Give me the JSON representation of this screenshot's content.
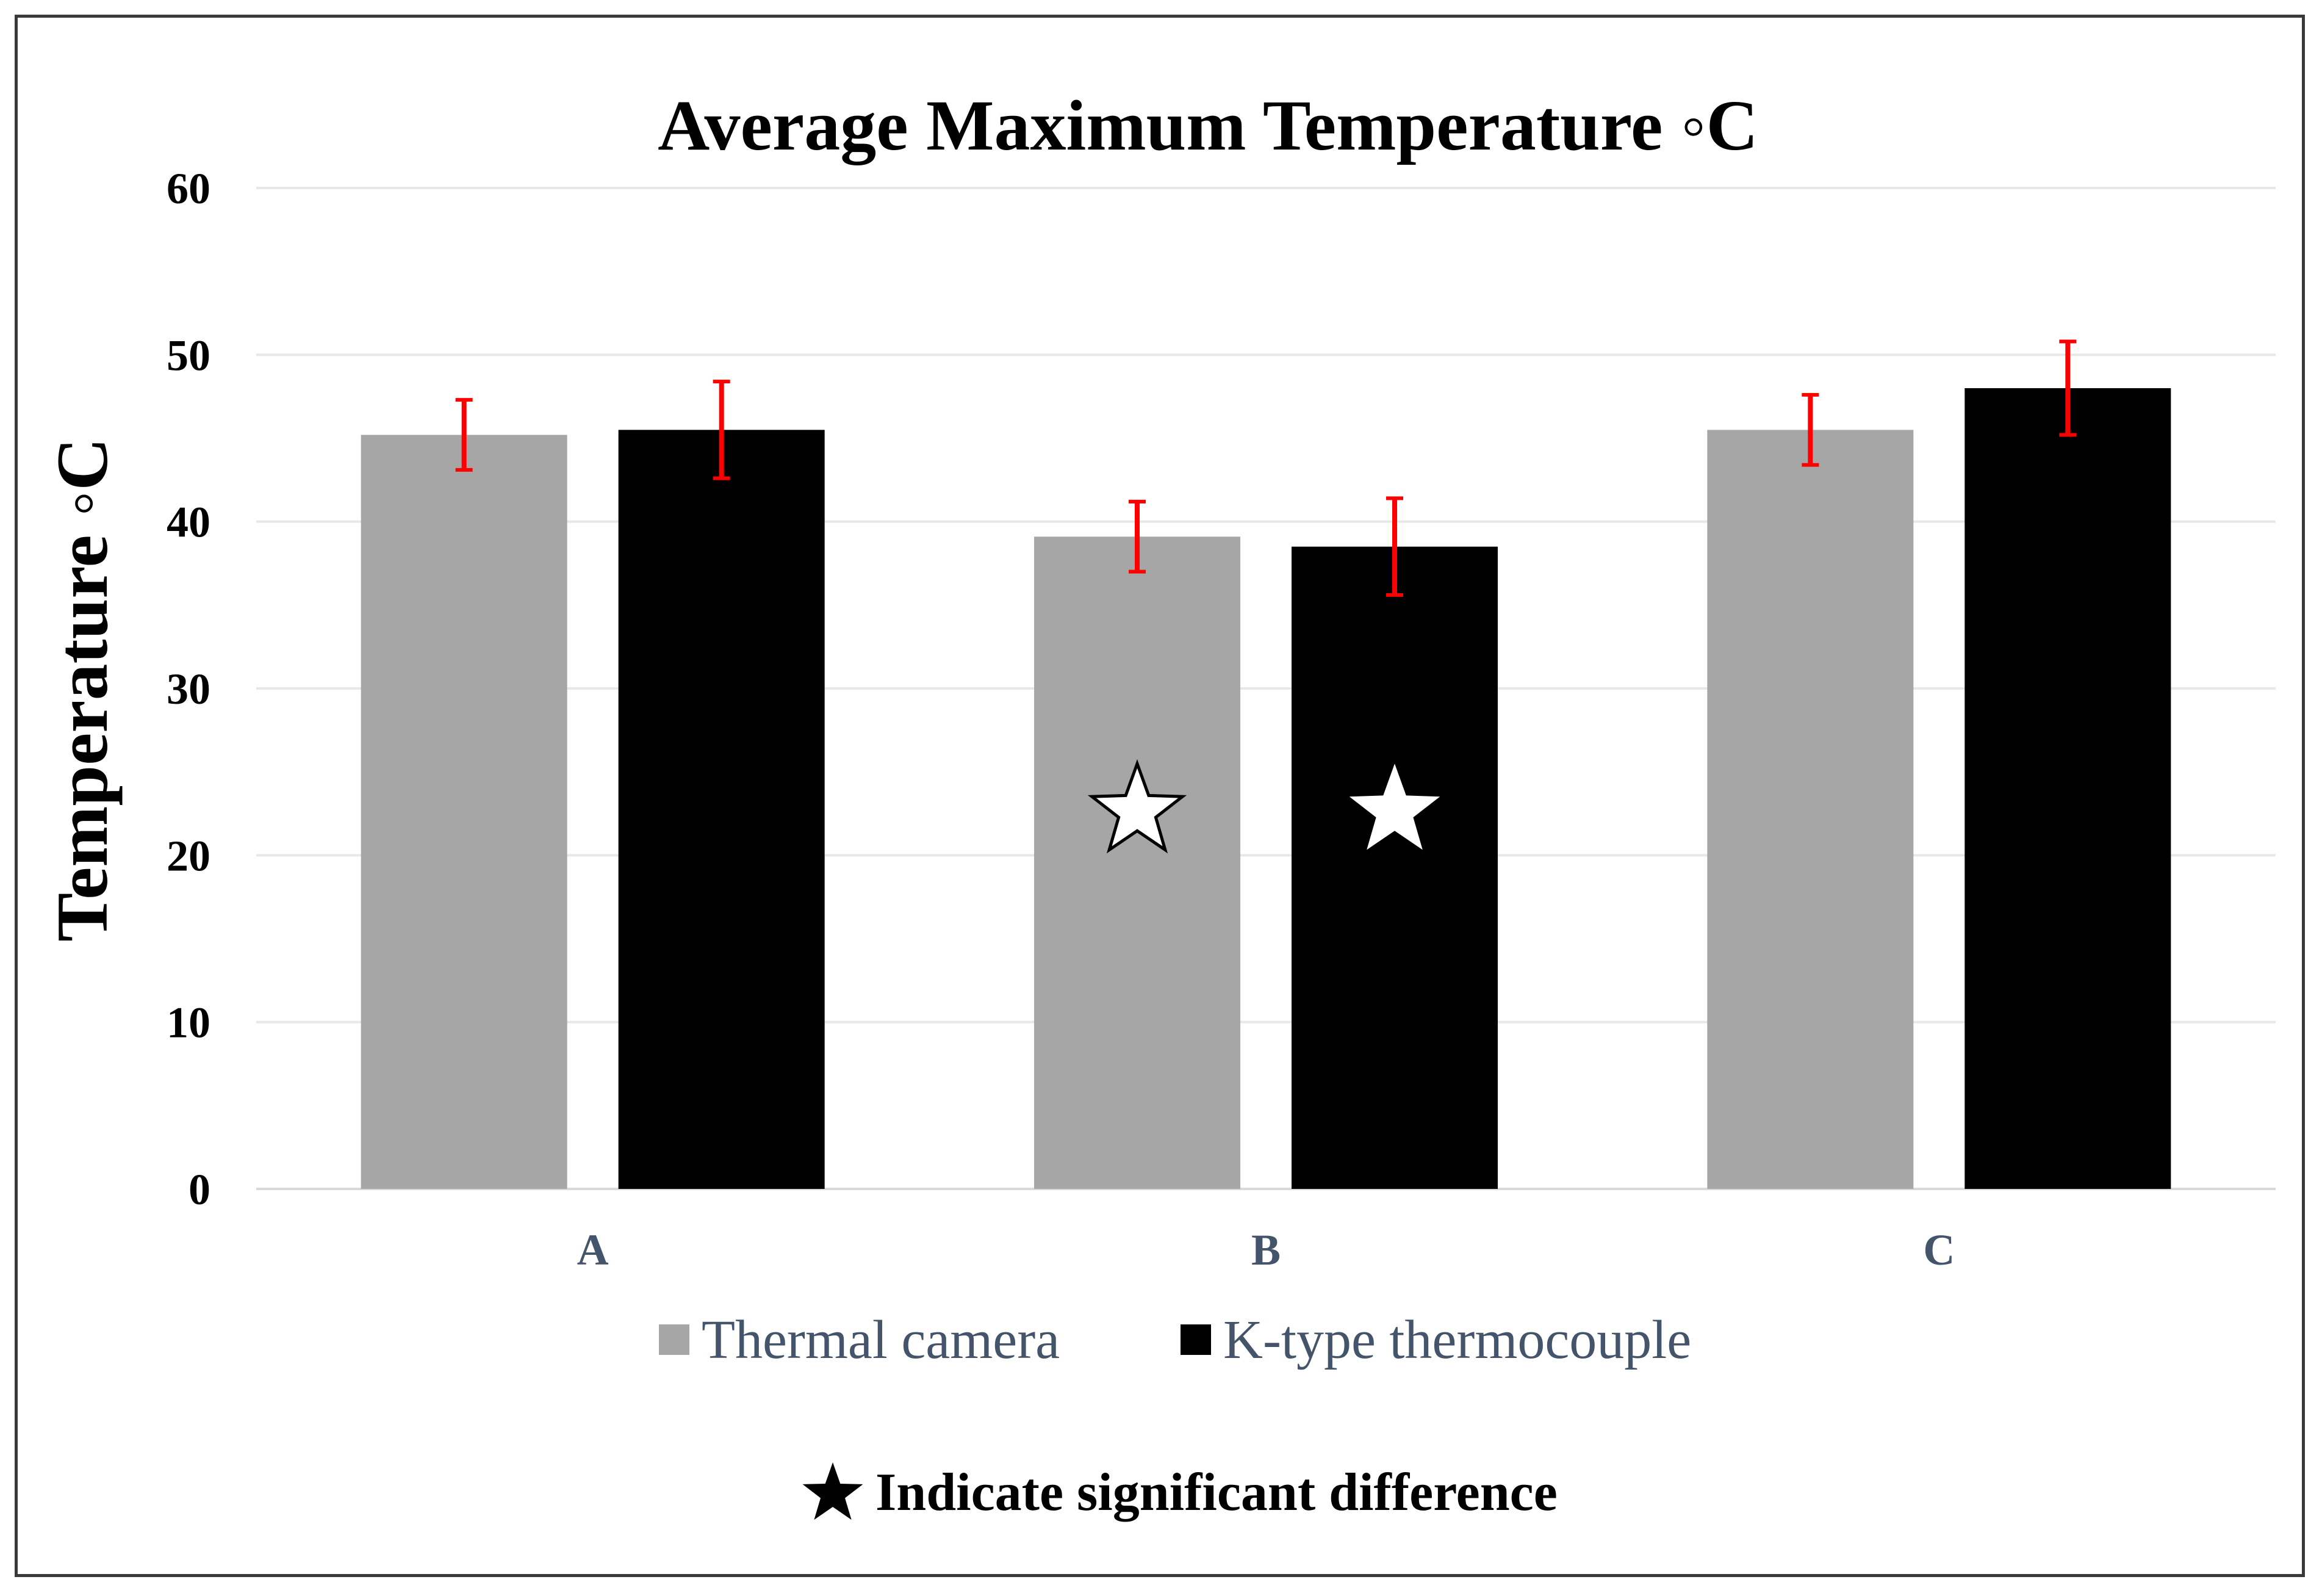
{
  "chart_data": {
    "type": "bar",
    "title": "Average Maximum Temperature ◦C",
    "ylabel": "Temperature ◦C",
    "xlabel": "",
    "categories": [
      "A",
      "B",
      "C"
    ],
    "ylim": [
      0,
      60
    ],
    "yticks": [
      0,
      10,
      20,
      30,
      40,
      50,
      60
    ],
    "grid": true,
    "legend_position": "bottom",
    "series": [
      {
        "name": "Thermal camera",
        "color": "#a6a6a6",
        "values": [
          45.2,
          39.1,
          45.5
        ],
        "error": [
          2.1,
          2.1,
          2.1
        ]
      },
      {
        "name": "K-type thermocouple",
        "color": "#000000",
        "values": [
          45.5,
          38.5,
          48.0
        ],
        "error": [
          2.9,
          2.9,
          2.8
        ]
      }
    ],
    "error_bar_color": "#ff0000",
    "significance_markers": [
      {
        "category": "B",
        "series": "Thermal camera",
        "value": 23,
        "style": "white-star-black-outline"
      },
      {
        "category": "B",
        "series": "K-type thermocouple",
        "value": 23,
        "style": "white-star"
      }
    ],
    "note": "Indicate significant difference",
    "note_icon": "star-icon"
  }
}
